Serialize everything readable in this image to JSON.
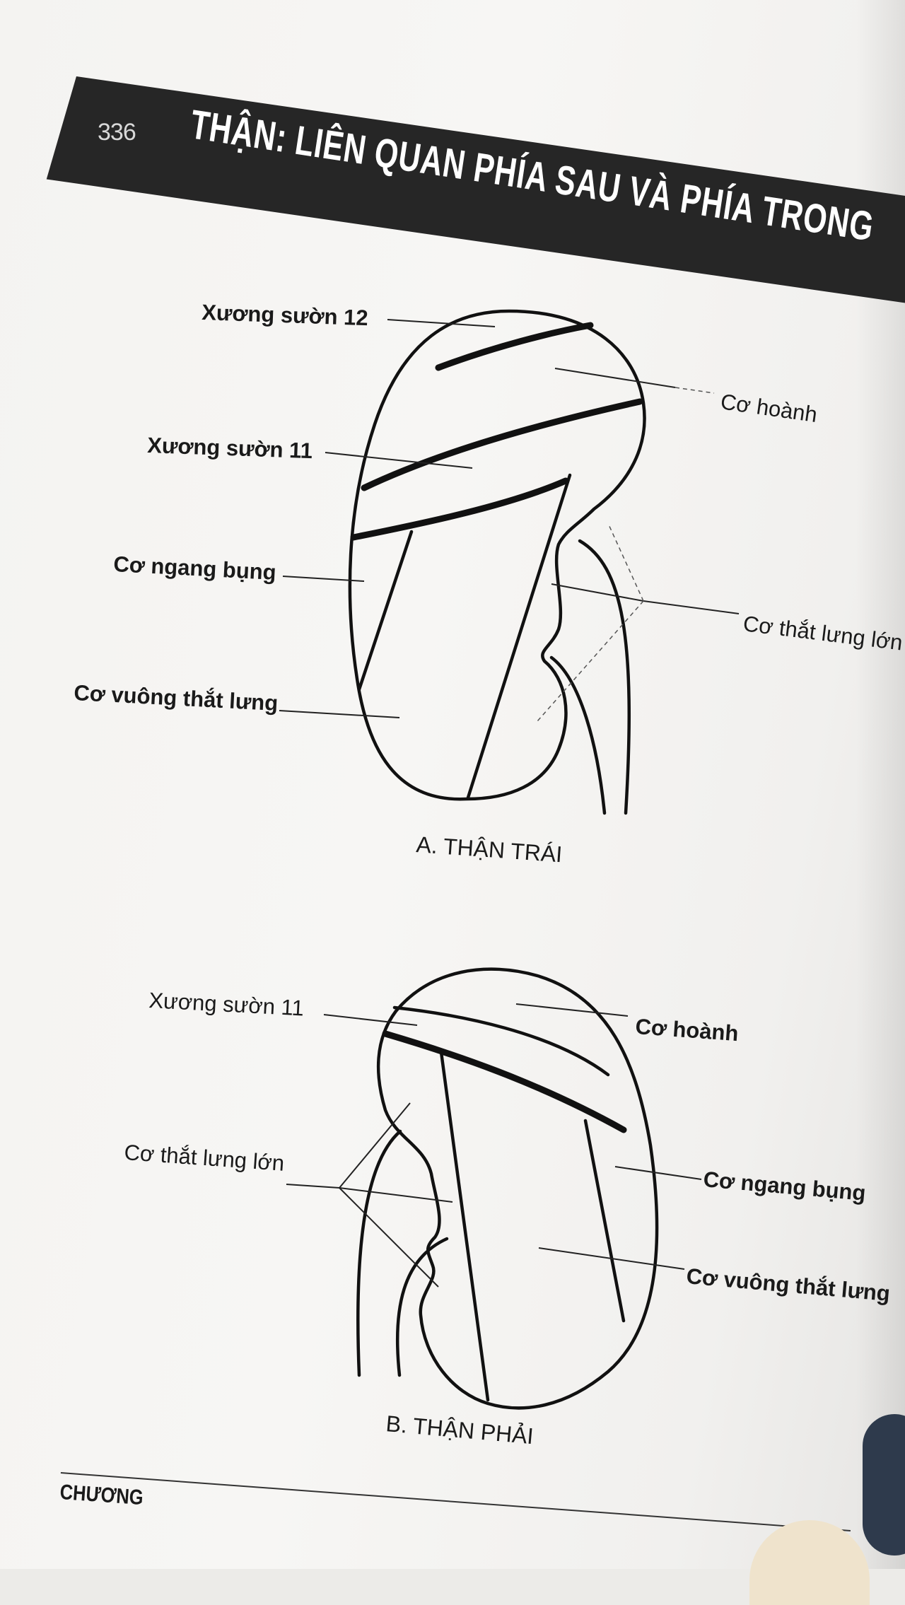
{
  "header": {
    "page_number": "336",
    "title": "THẬN: LIÊN QUAN PHÍA SAU VÀ PHÍA TRONG"
  },
  "figure_a": {
    "caption": "A.  THẬN TRÁI",
    "labels": {
      "rib12": "Xương sườn 12",
      "diaphragm": "Cơ hoành",
      "rib11": "Xương sườn 11",
      "transversus": "Cơ ngang bụng",
      "psoas": "Cơ thắt lưng lớn",
      "quadratus": "Cơ vuông thắt lưng"
    }
  },
  "figure_b": {
    "caption": "B.  THẬN PHẢI",
    "labels": {
      "rib11": "Xương sườn 11",
      "diaphragm": "Cơ hoành",
      "psoas": "Cơ thắt lưng lớn",
      "transversus": "Cơ ngang bụng",
      "quadratus": "Cơ vuông thắt lưng"
    }
  },
  "footer": {
    "chapter_label": "CHƯƠNG"
  }
}
